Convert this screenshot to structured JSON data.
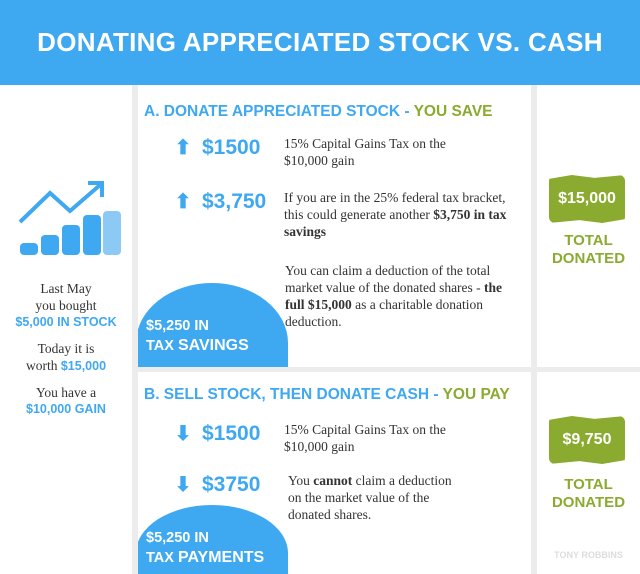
{
  "header": {
    "title": "DONATING APPRECIATED STOCK VS. CASH"
  },
  "left": {
    "line1": "Last May",
    "line2": "you bought",
    "stock": "$5,000 IN STOCK",
    "today1": "Today it is",
    "today2": "worth ",
    "today_value": "$15,000",
    "gain1": "You have a",
    "gain2": "$10,000 GAIN",
    "icon": "growth-chart-coins-icon"
  },
  "section_a": {
    "title": "A. DONATE APPRECIATED STOCK - ",
    "title_highlight": "YOU SAVE",
    "items": [
      {
        "icon": "arrow-up",
        "amount": "$1500",
        "desc": "15% Capital Gains Tax on the $10,000 gain"
      },
      {
        "icon": "arrow-up",
        "amount": "$3,750",
        "desc": "If you are in the 25% federal tax bracket, this could generate another ",
        "desc_bold": "$3,750 in tax savings"
      }
    ],
    "note": "You can claim a deduction of the total market value of the donated shares - ",
    "note_bold": "the full $15,000",
    "note_end": " as a charitable donation deduction.",
    "badge_line1": "$5,250 IN",
    "badge_line2a": "TAX ",
    "badge_line2b": "SAVINGS",
    "total": "$15,000",
    "total_label1": "TOTAL",
    "total_label2": "DONATED"
  },
  "section_b": {
    "title": "B. SELL STOCK, THEN DONATE CASH - ",
    "title_highlight": "YOU PAY",
    "items": [
      {
        "icon": "arrow-down",
        "amount": "$1500",
        "desc": "15% Capital Gains Tax on the $10,000 gain"
      },
      {
        "icon": "arrow-down",
        "amount": "$3750",
        "desc_pre": "You ",
        "desc_bold": "cannot",
        "desc": " claim a deduction on the market value of the donated shares."
      }
    ],
    "badge_line1": "$5,250 IN",
    "badge_line2a": "TAX ",
    "badge_line2b": "PAYMENTS",
    "total": "$9,750",
    "total_label1": "TOTAL",
    "total_label2": "DONATED"
  },
  "watermark": "TONY ROBBINS",
  "colors": {
    "blue": "#3ea8f0",
    "green": "#8aab2f"
  }
}
